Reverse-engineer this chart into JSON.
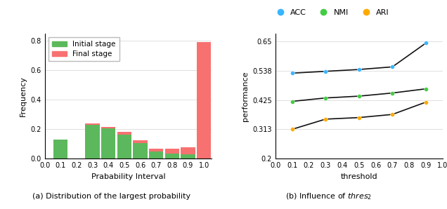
{
  "hist_bin_centers": [
    0.1,
    0.2,
    0.3,
    0.4,
    0.5,
    0.6,
    0.7,
    0.8,
    0.9,
    1.0
  ],
  "initial_vals": [
    0.13,
    0.0,
    0.23,
    0.205,
    0.165,
    0.105,
    0.05,
    0.035,
    0.03,
    0.0
  ],
  "final_vals": [
    0.0,
    0.0,
    0.01,
    0.01,
    0.02,
    0.02,
    0.02,
    0.035,
    0.05,
    0.79
  ],
  "initial_color": "#5cb85c",
  "final_color": "#f87171",
  "hist_ylabel": "Frequency",
  "hist_xlabel": "Prabability Interval",
  "hist_yticks": [
    0.0,
    0.2,
    0.4,
    0.6,
    0.8
  ],
  "hist_xticks": [
    0.0,
    0.1,
    0.2,
    0.3,
    0.4,
    0.5,
    0.6,
    0.7,
    0.8,
    0.9,
    1.0
  ],
  "hist_xlim": [
    0.0,
    1.05
  ],
  "hist_ylim": [
    0.0,
    0.85
  ],
  "bar_width": 0.09,
  "line_thresholds": [
    0.1,
    0.3,
    0.5,
    0.7,
    0.9
  ],
  "acc_values": [
    0.528,
    0.535,
    0.542,
    0.552,
    0.643
  ],
  "nmi_values": [
    0.42,
    0.433,
    0.44,
    0.452,
    0.468
  ],
  "ari_values": [
    0.313,
    0.352,
    0.358,
    0.37,
    0.417
  ],
  "acc_color": "#38b6ff",
  "nmi_color": "#44cc44",
  "ari_color": "#ffaa00",
  "line_color": "#111111",
  "line_ylabel": "performance",
  "line_xlabel": "threshold",
  "line_yticks": [
    0.2,
    0.313,
    0.425,
    0.538,
    0.65
  ],
  "line_ytick_labels": [
    "0.2",
    "0.313",
    "0.425",
    "0.538",
    "0.65"
  ],
  "line_xticks": [
    0.0,
    0.1,
    0.2,
    0.3,
    0.4,
    0.5,
    0.6,
    0.7,
    0.8,
    0.9,
    1.0
  ],
  "line_ylim": [
    0.2,
    0.68
  ],
  "line_xlim": [
    0.0,
    1.0
  ],
  "caption_a": "(a) Distribution of the largest probability",
  "caption_b": "(b) Influence of $thres_2$",
  "legend_initial": "Initial stage",
  "legend_final": "Final stage"
}
